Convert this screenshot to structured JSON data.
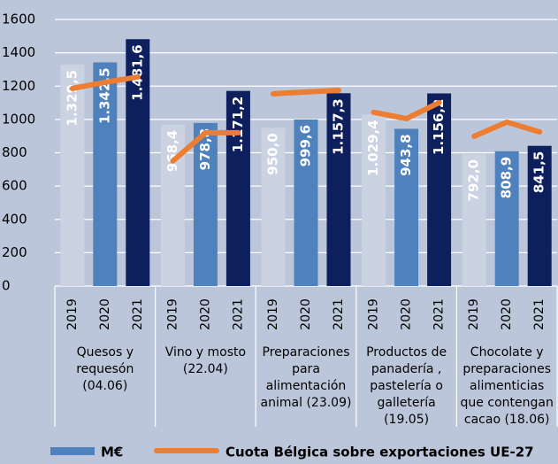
{
  "chart_data": {
    "type": "bar",
    "categories": [
      "2019",
      "2020",
      "2021",
      "2019",
      "2020",
      "2021",
      "2019",
      "2020",
      "2021",
      "2019",
      "2020",
      "2021",
      "2019",
      "2020",
      "2021"
    ],
    "group_labels": [
      [
        "Quesos y",
        "requesón",
        "(04.06)"
      ],
      [
        "Vino y mosto",
        "(22.04)"
      ],
      [
        "Preparaciones",
        "para",
        "alimentación",
        "animal  (23.09)"
      ],
      [
        "Productos de",
        "panadería ,",
        "pastelería o",
        "galletería",
        "(19.05)"
      ],
      [
        "Chocolate y",
        "preparaciones",
        "alimenticias",
        "que contengan",
        "cacao   (18.06)"
      ]
    ],
    "year_colors": [
      "#cbd2e2",
      "#4f81bd",
      "#0e1f5e"
    ],
    "series": [
      {
        "name": "M€",
        "type": "bar",
        "color": "#4f81bd",
        "values": [
          1329.5,
          1342.5,
          1481.6,
          968.4,
          978.8,
          1171.2,
          950.0,
          999.6,
          1157.3,
          1029.4,
          943.8,
          1156.2,
          792.0,
          808.9,
          841.5
        ],
        "value_labels": [
          "1.329,5",
          "1.342,5",
          "1.481,6",
          "968,4",
          "978,8",
          "1.171,2",
          "950,0",
          "999,6",
          "1.157,3",
          "1.029,4",
          "943,8",
          "1.156,2",
          "792,0",
          "808,9",
          "841,5"
        ]
      },
      {
        "name": "Cuota Bélgica sobre exportaciones UE-27",
        "type": "line",
        "color": "#ed7d31",
        "values": [
          1186,
          1223,
          1255,
          750,
          920,
          920,
          1154,
          1165,
          1175,
          1043,
          1005,
          1101,
          899,
          984,
          925
        ]
      }
    ],
    "ylim": [
      0,
      1600
    ],
    "yticks": [
      0,
      200,
      400,
      600,
      800,
      1000,
      {
        "value": 1200,
        "label": "1200"
      },
      {
        "value": 1400,
        "label": "1400"
      },
      {
        "value": 1600,
        "label": "1600"
      }
    ],
    "grid": true
  }
}
